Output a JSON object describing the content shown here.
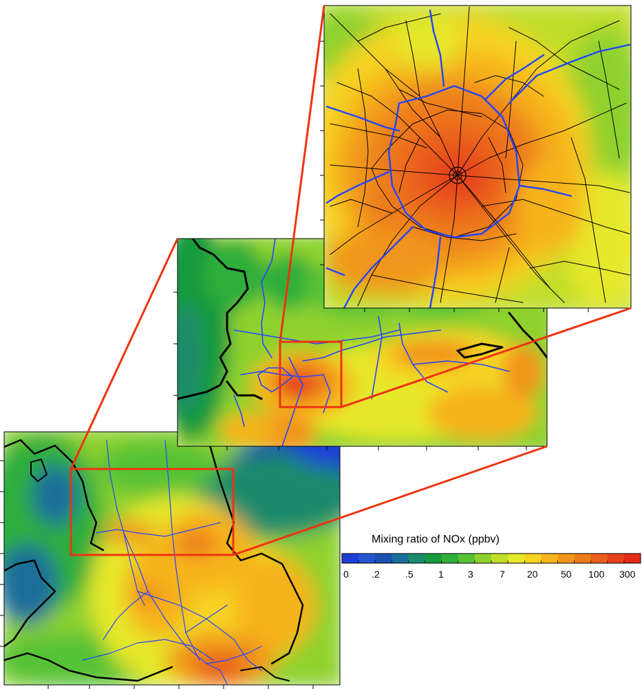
{
  "legend": {
    "title": "Mixing ratio of NOx  (ppbv)",
    "labels": [
      "0",
      ".2",
      ".5",
      "1",
      "3",
      "7",
      "20",
      "50",
      "100",
      "300"
    ],
    "colors": [
      "#1e3fd6",
      "#2555d0",
      "#1b4fb0",
      "#1a6e9a",
      "#1d8a6a",
      "#159a3c",
      "#2fae3a",
      "#56c234",
      "#8ed12d",
      "#c0dd2a",
      "#e6e82a",
      "#f7d320",
      "#f6b41c",
      "#f1961a",
      "#ed7a1a",
      "#ea5e1a",
      "#e6421a",
      "#e22a18"
    ]
  },
  "panels": {
    "large": {
      "name": "large-domain-map"
    },
    "medium": {
      "name": "regional-domain-map"
    },
    "small": {
      "name": "urban-domain-map"
    }
  }
}
